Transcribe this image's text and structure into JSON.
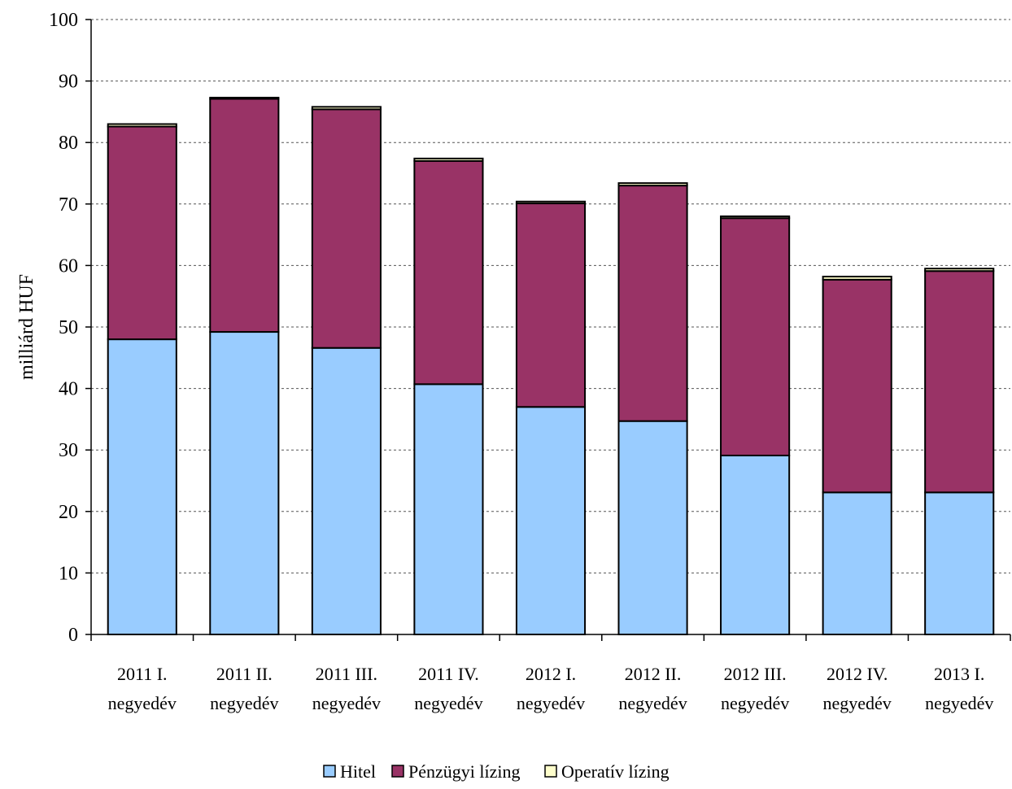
{
  "chart_data": {
    "type": "bar",
    "stacked": true,
    "ylabel": "milliárd HUF",
    "ylim": [
      0,
      100
    ],
    "yticks": [
      0,
      10,
      20,
      30,
      40,
      50,
      60,
      70,
      80,
      90,
      100
    ],
    "grid": true,
    "legend_position": "bottom",
    "categories": [
      [
        "2011 I.",
        "negyedév"
      ],
      [
        "2011 II.",
        "negyedév"
      ],
      [
        "2011 III.",
        "negyedév"
      ],
      [
        "2011 IV.",
        "negyedév"
      ],
      [
        "2012 I.",
        "negyedév"
      ],
      [
        "2012 II.",
        "negyedév"
      ],
      [
        "2012 III.",
        "negyedév"
      ],
      [
        "2012 IV.",
        "negyedév"
      ],
      [
        "2013 I.",
        "negyedév"
      ]
    ],
    "series": [
      {
        "name": "Hitel",
        "color": "#99ccff",
        "values": [
          48.0,
          49.2,
          46.6,
          40.7,
          37.0,
          34.7,
          29.1,
          23.1,
          23.1
        ]
      },
      {
        "name": "Pénzügyi lízing",
        "color": "#993366",
        "values": [
          34.6,
          37.9,
          38.8,
          36.3,
          33.1,
          38.3,
          38.6,
          34.6,
          36.0
        ]
      },
      {
        "name": "Operatív lízing",
        "color": "#ffffcc",
        "values": [
          0.4,
          0.2,
          0.4,
          0.4,
          0.3,
          0.4,
          0.3,
          0.5,
          0.4
        ]
      }
    ]
  }
}
